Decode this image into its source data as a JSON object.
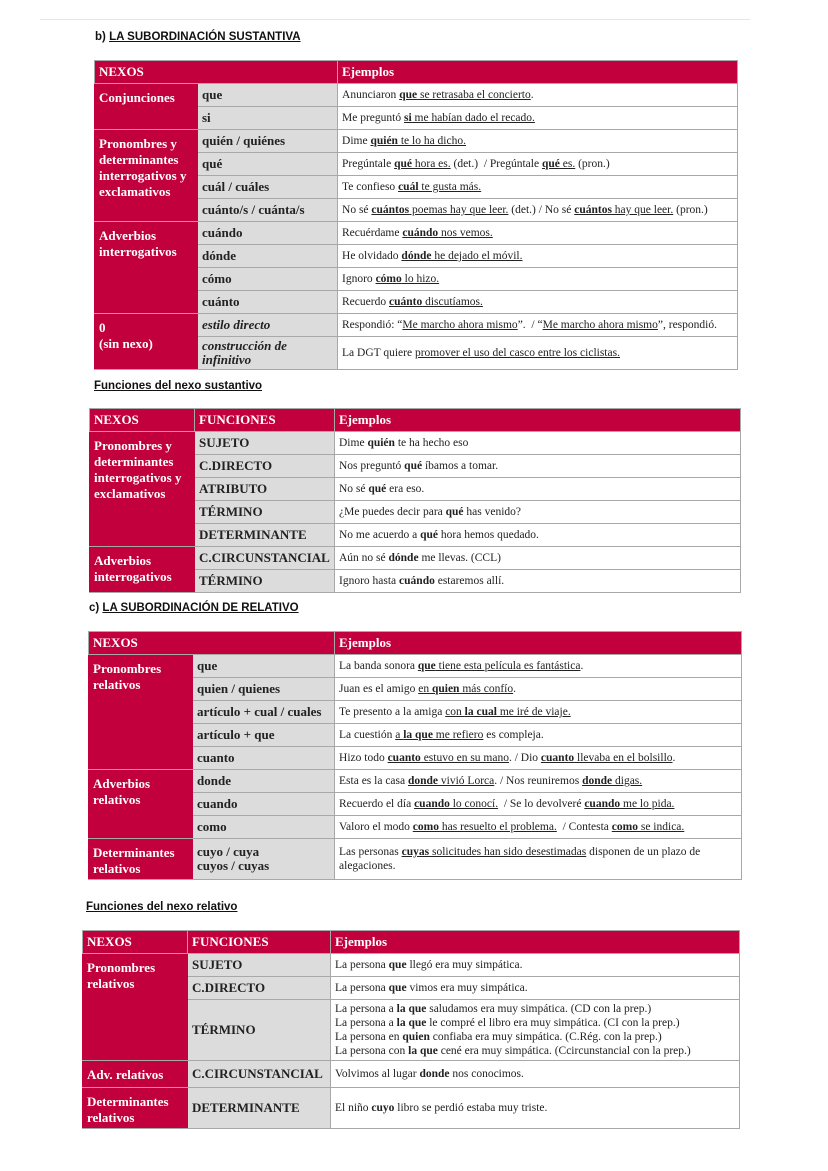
{
  "headings": {
    "b": "b) <u>LA SUBORDINACIÓN SUSTANTIVA</u>",
    "f1": "<u>Funciones del nexo sustantivo</u>",
    "c": "c) <u>LA SUBORDINACIÓN DE RELATIVO</u>",
    "f2": "<u>Funciones del nexo relativo</u>"
  },
  "colors": {
    "accent": "#c1003d",
    "nexo_cell": "#dcdcdc"
  },
  "tables": [
    {
      "header": [
        "NEXOS",
        "Ejemplos"
      ],
      "groups": [
        {
          "label": "Conjunciones",
          "rows": [
            {
              "nexo": "que",
              "ejemplo": "Anunciaron <u><b>que</b> se retrasaba el concierto</u>."
            },
            {
              "nexo": "si",
              "ejemplo": "Me preguntó <u><b>si</b> me habían dado el recado.</u>"
            }
          ]
        },
        {
          "label": "Pronombres y determinantes interrogativos y exclamativos",
          "rows": [
            {
              "nexo": "quién / quiénes",
              "ejemplo": "Dime <u><b>quién</b> te lo ha dicho.</u>"
            },
            {
              "nexo": "qué",
              "ejemplo": "Pregúntale <u><b>qué</b> hora es.</u> (det.) &nbsp;/ Pregúntale <u><b>qué</b> es.</u> (pron.)"
            },
            {
              "nexo": "cuál / cuáles",
              "ejemplo": "Te confieso <u><b>cuál</b> te gusta más.</u>"
            },
            {
              "nexo": "cuánto/s / cuánta/s",
              "ejemplo": "No sé <u><b>cuántos</b> poemas hay que leer.</u> (det.) / No sé <u><b>cuántos</b> hay que leer.</u> (pron.)"
            }
          ]
        },
        {
          "label": "Adverbios interrogativos",
          "rows": [
            {
              "nexo": "cuándo",
              "ejemplo": "Recuérdame <u><b>cuándo</b> nos vemos.</u>"
            },
            {
              "nexo": "dónde",
              "ejemplo": "He olvidado <u><b>dónde</b> he dejado el móvil.</u>"
            },
            {
              "nexo": "cómo",
              "ejemplo": "Ignoro <u><b>cómo</b> lo hizo.</u>"
            },
            {
              "nexo": "cuánto",
              "ejemplo": "Recuerdo <u><b>cuánto</b> discutíamos.</u>"
            }
          ]
        },
        {
          "label": "0<br>(sin nexo)",
          "rows": [
            {
              "nexo": "<i>estilo directo</i>",
              "ejemplo": "Respondió: “<u>Me marcho ahora mismo</u>”. &nbsp;/ “<u>Me marcho ahora mismo</u>”, respondió."
            },
            {
              "nexo": "<i>construcción de infinitivo</i>",
              "ejemplo": "La DGT quiere <u>promover el uso del casco entre los ciclistas.</u>"
            }
          ]
        }
      ]
    },
    {
      "header": [
        "NEXOS",
        "FUNCIONES",
        "Ejemplos"
      ],
      "groups": [
        {
          "label": "Pronombres y determinantes interrogativos y exclamativos",
          "rows": [
            {
              "nexo": "SUJETO",
              "ejemplo": "Dime <b>quién</b> te ha hecho eso"
            },
            {
              "nexo": "C.DIRECTO",
              "ejemplo": "Nos preguntó <b>qué</b> íbamos a tomar."
            },
            {
              "nexo": "ATRIBUTO",
              "ejemplo": "No sé <b>qué</b> era eso."
            },
            {
              "nexo": "TÉRMINO",
              "ejemplo": "¿Me puedes decir para <b>qué</b> has venido?"
            },
            {
              "nexo": "DETERMINANTE",
              "ejemplo": "No me acuerdo a <b>qué</b> hora hemos quedado."
            }
          ]
        },
        {
          "label": "Adverbios interrogativos",
          "rows": [
            {
              "nexo": "C.CIRCUNSTANCIAL",
              "ejemplo": "Aún no sé <b>dónde</b> me llevas. (CCL)"
            },
            {
              "nexo": "TÉRMINO",
              "ejemplo": "Ignoro hasta <b>cuándo</b> estaremos allí."
            }
          ]
        }
      ]
    },
    {
      "header": [
        "NEXOS",
        "Ejemplos"
      ],
      "groups": [
        {
          "label": "Pronombres relativos",
          "rows": [
            {
              "nexo": "que",
              "ejemplo": "La banda sonora <u><b>que</b> tiene esta película es fantástica</u>."
            },
            {
              "nexo": "quien / quienes",
              "ejemplo": "Juan es el amigo <u>en <b>quien</b> más confío</u>."
            },
            {
              "nexo": "artículo + cual / cuales",
              "ejemplo": "Te presento a la amiga <u>con <b>la cual</b> me iré de viaje.</u>"
            },
            {
              "nexo": "artículo + que",
              "ejemplo": "La cuestión <u>a <b>la que</b> me refiero</u> es compleja."
            },
            {
              "nexo": "cuanto",
              "ejemplo": "Hizo todo <u><b>cuanto</b> estuvo en su mano</u>. / Dio <u><b>cuanto</b> llevaba en el bolsillo</u>."
            }
          ]
        },
        {
          "label": "Adverbios relativos",
          "rows": [
            {
              "nexo": "donde",
              "ejemplo": "Esta es la casa <u><b>donde</b> vivió Lorca</u>. / Nos reuniremos <u><b>donde</b> digas.</u>"
            },
            {
              "nexo": "cuando",
              "ejemplo": "Recuerdo el día <u><b>cuando</b> lo conocí.</u> &nbsp;/ Se lo devolveré <u><b>cuando</b> me lo pida.</u>"
            },
            {
              "nexo": "como",
              "ejemplo": "Valoro el modo <u><b>como</b> has resuelto el problema.</u> &nbsp;/ Contesta <u><b>como</b> se indica.</u>"
            }
          ]
        },
        {
          "label": "Determinantes relativos",
          "rows": [
            {
              "nexo": "cuyo / cuya<br>cuyos / cuyas",
              "ejemplo": "Las personas <u><b>cuyas</b> solicitudes han sido desestimadas</u> disponen de un plazo de alegaciones."
            }
          ]
        }
      ]
    },
    {
      "header": [
        "NEXOS",
        "FUNCIONES",
        "Ejemplos"
      ],
      "groups": [
        {
          "label": "Pronombres relativos",
          "rows": [
            {
              "nexo": "SUJETO",
              "ejemplo": "La persona <b>que</b> llegó era muy simpática."
            },
            {
              "nexo": "C.DIRECTO",
              "ejemplo": "La persona <b>que</b> vimos era muy simpática."
            },
            {
              "nexo": "TÉRMINO",
              "ejemplo": "La persona a <b>la que</b> saludamos era muy simpática. (CD con la prep.)<br>La persona a <b>la que</b> le compré el libro era muy simpática. (CI con la prep.)<br>La persona en <b>quien</b> confiaba era muy simpática. (C.Rég. con la prep.)<br>La persona con <b>la que</b> cené era muy simpática. (Ccircunstancial con la prep.)"
            }
          ]
        },
        {
          "label": "Adv. relativos",
          "rows": [
            {
              "nexo": "C.CIRCUNSTANCIAL",
              "ejemplo": "Volvimos al lugar <b>donde</b> nos conocimos."
            }
          ]
        },
        {
          "label": "Determinantes relativos",
          "rows": [
            {
              "nexo": "DETERMINANTE",
              "ejemplo": "El niño <b>cuyo</b> libro se perdió estaba muy triste."
            }
          ]
        }
      ]
    }
  ]
}
